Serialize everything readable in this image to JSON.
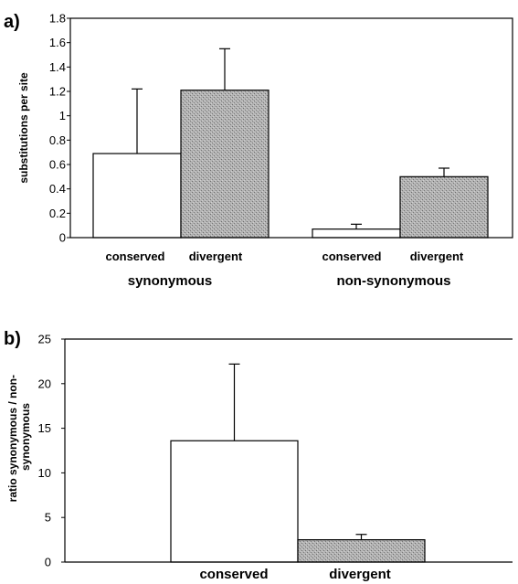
{
  "chart_data": [
    {
      "type": "bar",
      "panel_label": "a)",
      "ylabel": "substitutions per site",
      "ylim": [
        0,
        1.8
      ],
      "yticks": [
        "0",
        "0.2",
        "0.4",
        "0.6",
        "0.8",
        "1",
        "1.2",
        "1.4",
        "1.6",
        "1.8"
      ],
      "groups": [
        "synonymous",
        "non-synonymous"
      ],
      "categories": [
        "conserved",
        "divergent",
        "conserved",
        "divergent"
      ],
      "values": [
        0.69,
        1.21,
        0.07,
        0.5
      ],
      "error_upper": [
        1.22,
        1.55,
        0.11,
        0.57
      ],
      "bar_styles": [
        "open",
        "shaded",
        "open",
        "shaded"
      ],
      "colors": {
        "open": "#ffffff",
        "shaded": "#a3a3a3"
      }
    },
    {
      "type": "bar",
      "panel_label": "b)",
      "ylabel": "ratio synonymous / non-synonymous",
      "ylim": [
        0,
        25
      ],
      "yticks": [
        "0",
        "5",
        "10",
        "15",
        "20",
        "25"
      ],
      "categories": [
        "conserved",
        "divergent"
      ],
      "values": [
        13.6,
        2.5
      ],
      "error_upper": [
        22.2,
        3.1
      ],
      "bar_styles": [
        "open",
        "shaded"
      ],
      "colors": {
        "open": "#ffffff",
        "shaded": "#a3a3a3"
      }
    }
  ]
}
